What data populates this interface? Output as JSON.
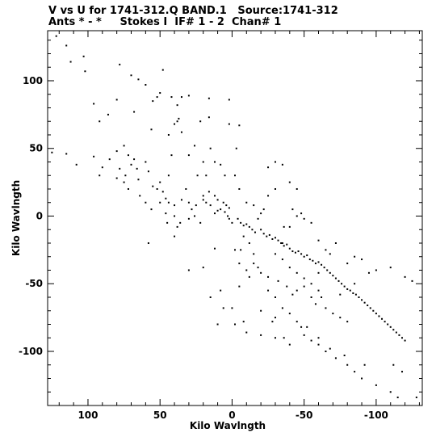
{
  "header": {
    "line1": "V vs U for 1741-312.Q BAND.1   Source:1741-312",
    "line2": "Ants * - *     Stokes I  IF# 1 - 2  Chan# 1"
  },
  "chart_data": {
    "type": "scatter",
    "xlabel": "Kilo Wavlngth",
    "ylabel": "Kilo Wavlngth",
    "xlim": [
      128,
      -132
    ],
    "ylim": [
      -140,
      137
    ],
    "x_ticks": [
      100,
      50,
      0,
      -50,
      -100
    ],
    "y_ticks": [
      100,
      50,
      0,
      -50,
      -100
    ],
    "x_tick_labels": [
      "100",
      "50",
      "0",
      "-50",
      "-100"
    ],
    "y_tick_labels": [
      "100",
      "50",
      "0",
      "-50",
      "-100"
    ],
    "grid": false,
    "points": [
      [
        122,
        133
      ],
      [
        112,
        114
      ],
      [
        103,
        118
      ],
      [
        115,
        126
      ],
      [
        102,
        107
      ],
      [
        96,
        83
      ],
      [
        92,
        70
      ],
      [
        78,
        112
      ],
      [
        80,
        86
      ],
      [
        86,
        75
      ],
      [
        65,
        101
      ],
      [
        68,
        77
      ],
      [
        60,
        97
      ],
      [
        56,
        64
      ],
      [
        70,
        104
      ],
      [
        48,
        108
      ],
      [
        50,
        91
      ],
      [
        52,
        88
      ],
      [
        55,
        85
      ],
      [
        42,
        88
      ],
      [
        38,
        82
      ],
      [
        37,
        72
      ],
      [
        40,
        68
      ],
      [
        35,
        62
      ],
      [
        44,
        60
      ],
      [
        35,
        88
      ],
      [
        30,
        89
      ],
      [
        16,
        87
      ],
      [
        2,
        86
      ],
      [
        38,
        70
      ],
      [
        22,
        70
      ],
      [
        16,
        73
      ],
      [
        2,
        68
      ],
      [
        -5,
        67
      ],
      [
        -3,
        50
      ],
      [
        26,
        52
      ],
      [
        30,
        45
      ],
      [
        15,
        50
      ],
      [
        12,
        40
      ],
      [
        8,
        38
      ],
      [
        20,
        40
      ],
      [
        24,
        30
      ],
      [
        18,
        30
      ],
      [
        5,
        30
      ],
      [
        -2,
        30
      ],
      [
        -25,
        36
      ],
      [
        -30,
        40
      ],
      [
        -35,
        38
      ],
      [
        -40,
        25
      ],
      [
        -45,
        20
      ],
      [
        -30,
        20
      ],
      [
        -25,
        15
      ],
      [
        -5,
        20
      ],
      [
        -10,
        10
      ],
      [
        -15,
        8
      ],
      [
        125,
        47
      ],
      [
        115,
        46
      ],
      [
        108,
        38
      ],
      [
        96,
        44
      ],
      [
        85,
        42
      ],
      [
        80,
        48
      ],
      [
        75,
        52
      ],
      [
        72,
        45
      ],
      [
        70,
        38
      ],
      [
        90,
        36
      ],
      [
        92,
        30
      ],
      [
        80,
        28
      ],
      [
        75,
        25
      ],
      [
        66,
        35
      ],
      [
        65,
        27
      ],
      [
        60,
        40
      ],
      [
        58,
        33
      ],
      [
        55,
        22
      ],
      [
        52,
        20
      ],
      [
        50,
        25
      ],
      [
        48,
        18
      ],
      [
        46,
        13
      ],
      [
        44,
        10
      ],
      [
        40,
        8
      ],
      [
        35,
        12
      ],
      [
        32,
        20
      ],
      [
        30,
        10
      ],
      [
        28,
        5
      ],
      [
        25,
        8
      ],
      [
        20,
        12
      ],
      [
        18,
        10
      ],
      [
        15,
        8
      ],
      [
        10,
        4
      ],
      [
        12,
        2
      ],
      [
        8,
        5
      ],
      [
        5,
        3
      ],
      [
        3,
        0
      ],
      [
        2,
        -2
      ],
      [
        50,
        10
      ],
      [
        46,
        2
      ],
      [
        40,
        0
      ],
      [
        36,
        -5
      ],
      [
        30,
        -2
      ],
      [
        26,
        0
      ],
      [
        22,
        -5
      ],
      [
        20,
        15
      ],
      [
        16,
        18
      ],
      [
        12,
        15
      ],
      [
        10,
        12
      ],
      [
        6,
        10
      ],
      [
        4,
        8
      ],
      [
        2,
        6
      ],
      [
        38,
        -8
      ],
      [
        45,
        -5
      ],
      [
        0,
        -5
      ],
      [
        -4,
        -2
      ],
      [
        -6,
        -5
      ],
      [
        -8,
        -7
      ],
      [
        -10,
        -6
      ],
      [
        -12,
        -8
      ],
      [
        -14,
        -10
      ],
      [
        -16,
        -12
      ],
      [
        -20,
        -10
      ],
      [
        -22,
        -13
      ],
      [
        -24,
        -15
      ],
      [
        -26,
        -14
      ],
      [
        -28,
        -17
      ],
      [
        -30,
        -16
      ],
      [
        -32,
        -18
      ],
      [
        -34,
        -20
      ],
      [
        -36,
        -22
      ],
      [
        -38,
        -21
      ],
      [
        -40,
        -24
      ],
      [
        -42,
        -26
      ],
      [
        -44,
        -27
      ],
      [
        -46,
        -26
      ],
      [
        -48,
        -28
      ],
      [
        -50,
        -30
      ],
      [
        -52,
        -29
      ],
      [
        -54,
        -32
      ],
      [
        -56,
        -33
      ],
      [
        -58,
        -35
      ],
      [
        -60,
        -34
      ],
      [
        -62,
        -36
      ],
      [
        -64,
        -38
      ],
      [
        -66,
        -40
      ],
      [
        -68,
        -42
      ],
      [
        -70,
        -44
      ],
      [
        -72,
        -46
      ],
      [
        -74,
        -48
      ],
      [
        -76,
        -50
      ],
      [
        -78,
        -52
      ],
      [
        -80,
        -54
      ],
      [
        -82,
        -55
      ],
      [
        -84,
        -57
      ],
      [
        -86,
        -58
      ],
      [
        -88,
        -60
      ],
      [
        -90,
        -62
      ],
      [
        -92,
        -64
      ],
      [
        -94,
        -66
      ],
      [
        -96,
        -68
      ],
      [
        -98,
        -70
      ],
      [
        -100,
        -72
      ],
      [
        -102,
        -74
      ],
      [
        -104,
        -76
      ],
      [
        -106,
        -78
      ],
      [
        -108,
        -80
      ],
      [
        -110,
        -82
      ],
      [
        -112,
        -84
      ],
      [
        -114,
        -86
      ],
      [
        -116,
        -88
      ],
      [
        -118,
        -90
      ],
      [
        -120,
        -92
      ],
      [
        -30,
        -28
      ],
      [
        -35,
        -32
      ],
      [
        -40,
        -38
      ],
      [
        -45,
        -42
      ],
      [
        -50,
        -46
      ],
      [
        -55,
        -50
      ],
      [
        -60,
        -55
      ],
      [
        -62,
        -60
      ],
      [
        -58,
        -65
      ],
      [
        -65,
        -68
      ],
      [
        -70,
        -72
      ],
      [
        -75,
        -75
      ],
      [
        -80,
        -78
      ],
      [
        -10,
        -40
      ],
      [
        -18,
        -38
      ],
      [
        -25,
        -45
      ],
      [
        -32,
        -48
      ],
      [
        -38,
        -52
      ],
      [
        -42,
        -58
      ],
      [
        -50,
        -52
      ],
      [
        -55,
        -60
      ],
      [
        -30,
        -60
      ],
      [
        -35,
        -68
      ],
      [
        -40,
        -72
      ],
      [
        -45,
        -78
      ],
      [
        -52,
        -82
      ],
      [
        -20,
        -70
      ],
      [
        -28,
        -78
      ],
      [
        -8,
        -78
      ],
      [
        -2,
        -80
      ],
      [
        10,
        -80
      ],
      [
        0,
        -68
      ],
      [
        6,
        -68
      ],
      [
        -48,
        -82
      ],
      [
        -50,
        -88
      ],
      [
        -55,
        -92
      ],
      [
        -60,
        -95
      ],
      [
        -65,
        -100
      ],
      [
        -72,
        -105
      ],
      [
        -80,
        -110
      ],
      [
        -85,
        -115
      ],
      [
        -90,
        -120
      ],
      [
        -100,
        -125
      ],
      [
        -110,
        -130
      ],
      [
        -115,
        -134
      ],
      [
        -128,
        -134
      ],
      [
        -10,
        -86
      ],
      [
        -20,
        -88
      ],
      [
        -30,
        -90
      ],
      [
        -36,
        -90
      ],
      [
        -40,
        -95
      ],
      [
        -60,
        -90
      ],
      [
        -68,
        -98
      ],
      [
        -78,
        -103
      ],
      [
        -92,
        -110
      ],
      [
        -112,
        -110
      ],
      [
        -118,
        -115
      ],
      [
        30,
        -40
      ],
      [
        20,
        -38
      ],
      [
        12,
        -24
      ],
      [
        -2,
        -25
      ],
      [
        -15,
        -28
      ],
      [
        15,
        -60
      ],
      [
        8,
        -55
      ],
      [
        -5,
        -52
      ],
      [
        -12,
        -45
      ],
      [
        -20,
        -42
      ],
      [
        -25,
        -55
      ],
      [
        -45,
        -55
      ],
      [
        -35,
        -20
      ],
      [
        -60,
        -42
      ],
      [
        -75,
        -58
      ],
      [
        -85,
        -50
      ],
      [
        -95,
        -42
      ],
      [
        -100,
        -40
      ],
      [
        -110,
        -38
      ],
      [
        -120,
        -45
      ],
      [
        -125,
        -48
      ],
      [
        -80,
        -35
      ],
      [
        -85,
        -30
      ],
      [
        -90,
        -32
      ],
      [
        -68,
        -28
      ],
      [
        -72,
        -20
      ],
      [
        -60,
        -18
      ],
      [
        -55,
        -5
      ],
      [
        -50,
        -2
      ],
      [
        -48,
        2
      ],
      [
        -45,
        0
      ],
      [
        -42,
        5
      ],
      [
        -36,
        -8
      ],
      [
        -20,
        2
      ],
      [
        -22,
        5
      ],
      [
        -18,
        -2
      ],
      [
        -12,
        -20
      ],
      [
        -8,
        -15
      ],
      [
        -6,
        -25
      ],
      [
        40,
        -15
      ],
      [
        58,
        -20
      ],
      [
        60,
        10
      ],
      [
        64,
        15
      ],
      [
        72,
        20
      ],
      [
        74,
        30
      ],
      [
        78,
        35
      ],
      [
        68,
        42
      ],
      [
        56,
        5
      ],
      [
        44,
        30
      ],
      [
        42,
        45
      ],
      [
        -30,
        -75
      ],
      [
        -5,
        -35
      ],
      [
        -15,
        -35
      ],
      [
        -40,
        -8
      ],
      [
        -65,
        -25
      ]
    ]
  }
}
